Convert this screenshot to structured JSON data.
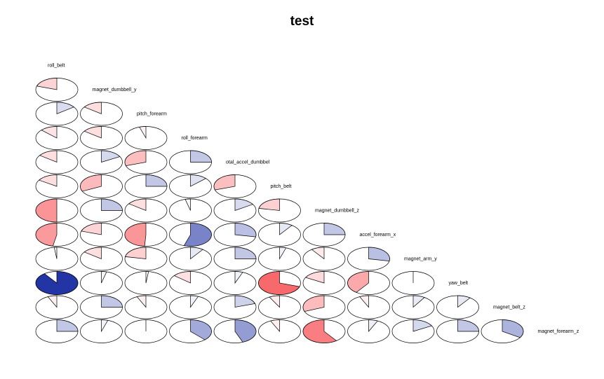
{
  "chart_data": {
    "type": "corrgram",
    "title": "test",
    "panel": "pie",
    "variables": [
      "roll_belt",
      "magnet_dumbbell_y",
      "pitch_forearm",
      "roll_forearm",
      "total_accel_dumbbell",
      "pitch_belt",
      "magnet_dumbbell_z",
      "accel_forearm_x",
      "magnet_arm_y",
      "yaw_belt",
      "magnet_belt_z",
      "magnet_forearm_z"
    ],
    "variable_labels": [
      "roll_belt",
      "magnet_dumbbell_y",
      "pitch_forearm",
      "roll_forearm",
      "otal_accel_dumbbel",
      "pitch_belt",
      "magnet_dumbbell_z",
      "accel_forearm_x",
      "magnet_arm_y",
      "yaw_belt",
      "magnet_belt_z",
      "magnet_forearm_z"
    ],
    "colors": {
      "positive_max": "#0A1E9B",
      "negative_max": "#F5282D",
      "neutral": "#ffffff"
    },
    "correlations": [
      [
        -0.2
      ],
      [
        0.15,
        -0.15
      ],
      [
        -0.13,
        -0.15,
        -0.05
      ],
      [
        -0.15,
        0.17,
        -0.3,
        0.25
      ],
      [
        -0.16,
        -0.32,
        0.25,
        0.13,
        -0.3
      ],
      [
        -0.5,
        0.25,
        -0.15,
        -0.04,
        0.16,
        -0.22
      ],
      [
        -0.47,
        -0.2,
        -0.49,
        0.55,
        0.28,
        0.1,
        0.25
      ],
      [
        -0.02,
        -0.15,
        -0.22,
        0.1,
        0.25,
        0.05,
        -0.1,
        0.28
      ],
      [
        0.9,
        0.04,
        0.02,
        -0.14,
        0.06,
        -0.7,
        -0.17,
        -0.4,
        0.0
      ],
      [
        -0.07,
        0.25,
        -0.07,
        0.06,
        0.2,
        -0.08,
        -0.31,
        -0.07,
        0.09,
        0.1
      ],
      [
        0.25,
        0.05,
        0.0,
        0.38,
        0.44,
        -0.07,
        -0.6,
        0.07,
        0.17,
        0.25,
        0.34
      ]
    ]
  }
}
